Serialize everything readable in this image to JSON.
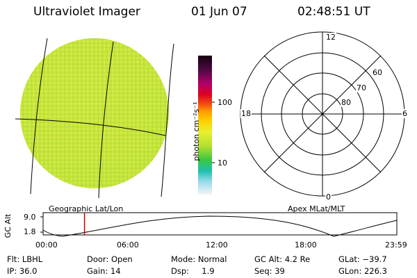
{
  "header": {
    "instrument": "Ultraviolet Imager",
    "date": "01 Jun 07",
    "time": "02:48:51 UT"
  },
  "colorbar": {
    "unit_label": "photon cm⁻²s⁻¹",
    "ticks": [
      "100",
      "10"
    ]
  },
  "polar_plot": {
    "mlt_labels": {
      "top": "12",
      "left": "18",
      "right": "6",
      "bottom": "0"
    },
    "mlat_labels": [
      "60",
      "70",
      "80"
    ]
  },
  "captions": {
    "left": "Geographic Lat/Lon",
    "right": "Apex MLat/MLT"
  },
  "altitude_plot": {
    "ylabel": "GC Alt",
    "y_ticks": [
      "9.0",
      "1.8"
    ],
    "x_ticks": [
      "00:00",
      "06:00",
      "12:00",
      "18:00",
      "23:59"
    ],
    "current_time_hours": 2.81
  },
  "status": {
    "flt": "Flt: LBHL",
    "ip": "IP: 36.0",
    "door": "Door: Open",
    "gain": "Gain: 14",
    "mode": "Mode: Normal",
    "dsp": "Dsp:     1.9",
    "gc_alt": "GC Alt: 4.2 Re",
    "seq": "Seq: 39",
    "glat": "GLat: −39.7",
    "glon": "GLon: 226.3"
  },
  "colors": {
    "disk_fill": "#cfe83a",
    "time_marker": "#cc0000"
  }
}
